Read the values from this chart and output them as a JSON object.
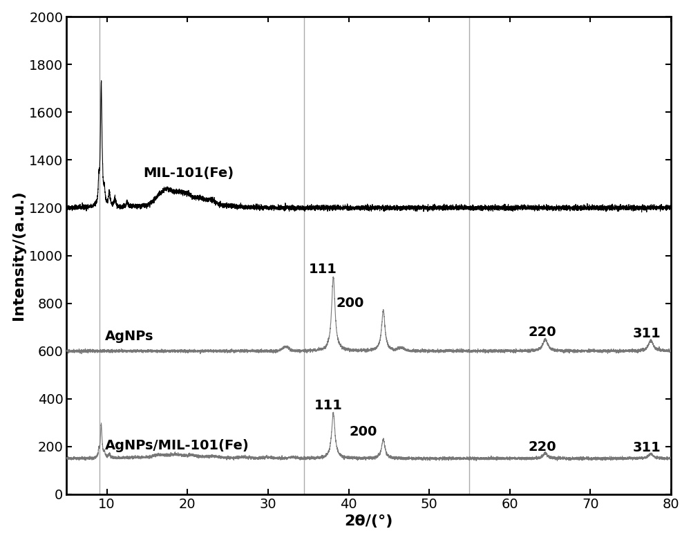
{
  "xlim": [
    5,
    80
  ],
  "ylim": [
    0,
    2000
  ],
  "xlabel": "2θ/(°)",
  "ylabel": "Intensity/(a.u.)",
  "xticks": [
    10,
    20,
    30,
    40,
    50,
    60,
    70,
    80
  ],
  "yticks": [
    0,
    200,
    400,
    600,
    800,
    1000,
    1200,
    1400,
    1600,
    1800,
    2000
  ],
  "curve1_label": "MIL-101(Fe)",
  "curve1_color": "#000000",
  "curve1_baseline": 1200,
  "curve2_label": "AgNPs",
  "curve2_color": "#777777",
  "curve2_baseline": 600,
  "curve3_label": "AgNPs/MIL-101(Fe)",
  "curve3_color": "#777777",
  "curve3_baseline": 150,
  "ag_peaks_111": 38.1,
  "ag_peaks_200": 44.3,
  "ag_peaks_220": 64.4,
  "ag_peaks_311": 77.5,
  "vline1": 9.1,
  "vline2": 34.5,
  "vline3": 55.0,
  "background_color": "#ffffff",
  "tick_fontsize": 14,
  "label_fontsize": 16,
  "annotation_fontsize": 14,
  "linewidth": 0.8,
  "noise_seed": 42
}
